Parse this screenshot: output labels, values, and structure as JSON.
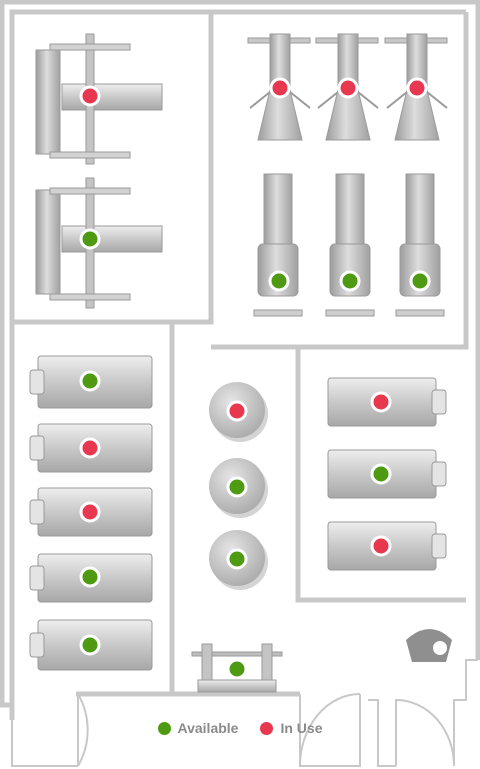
{
  "colors": {
    "available": "#4e9a12",
    "in_use": "#e8384f",
    "wall": "#c8c8c8",
    "machine_light": "#e2e2e2",
    "machine_dark": "#9a9a9a"
  },
  "legend": {
    "available_label": "Available",
    "in_use_label": "In Use"
  },
  "machines": {
    "leg_press": [
      "in_use",
      "available"
    ],
    "pulldown": [
      "in_use",
      "in_use",
      "in_use"
    ],
    "leg_extension": [
      "available",
      "available",
      "available"
    ],
    "treadmill_left": [
      "available",
      "in_use",
      "in_use",
      "available",
      "available"
    ],
    "round_stations": [
      "in_use",
      "available",
      "available"
    ],
    "bench_press": [
      "available"
    ],
    "treadmill_right": [
      "in_use",
      "available",
      "in_use"
    ]
  }
}
